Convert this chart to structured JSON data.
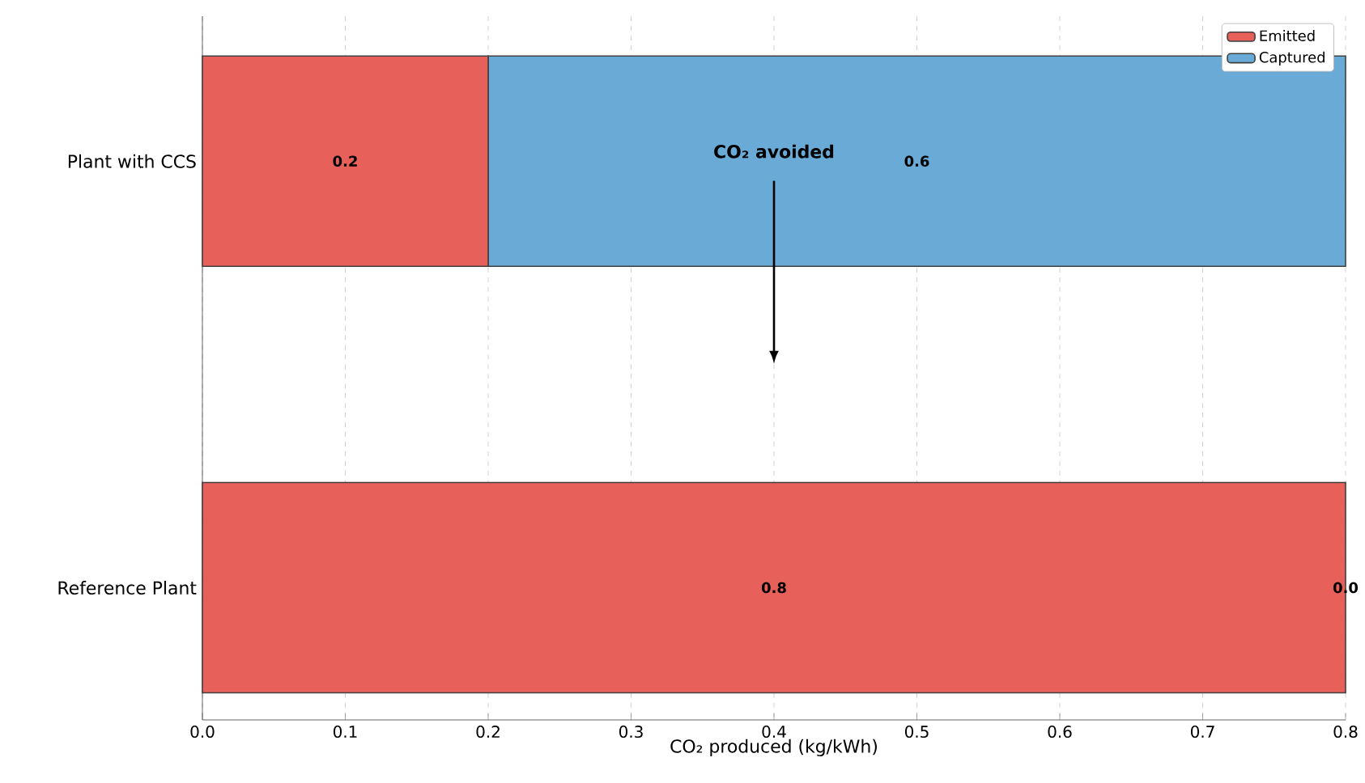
{
  "chart_data": {
    "type": "bar",
    "orientation": "horizontal",
    "stacked": true,
    "categories": [
      "Plant with CCS",
      "Reference Plant"
    ],
    "series": [
      {
        "name": "Emitted",
        "color": "#e8605a",
        "values": [
          0.2,
          0.8
        ],
        "value_labels": [
          "0.2",
          "0.8"
        ]
      },
      {
        "name": "Captured",
        "color": "#6aaad6",
        "values": [
          0.6,
          0.0
        ],
        "value_labels": [
          "0.6",
          "0.0"
        ]
      }
    ],
    "xlabel": "CO₂ produced (kg/kWh)",
    "xlim": [
      0.0,
      0.8
    ],
    "xticks": [
      {
        "value": 0.0,
        "label": "0.0"
      },
      0.1,
      0.2,
      0.3,
      0.4,
      0.5,
      0.6,
      0.7,
      0.8
    ],
    "grid": "x",
    "legend": "top right",
    "annotations": [
      "CO₂ avoided"
    ]
  }
}
